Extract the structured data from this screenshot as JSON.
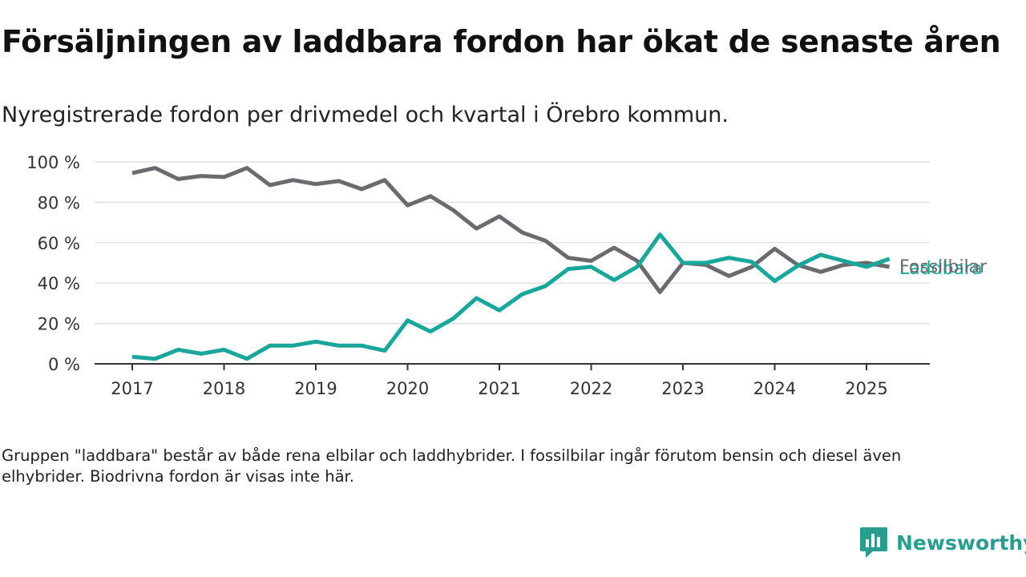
{
  "title": "Försäljningen av laddbara fordon har ökat de senaste åren",
  "subtitle": "Nyregistrerade fordon per drivmedel och kvartal i Örebro kommun.",
  "note": "Gruppen \"laddbara\" består av både rena elbilar och laddhybrider. I fossilbilar ingår förutom bensin och diesel även elhybrider. Biodrivna fordon är visas inte här.",
  "logo": {
    "text": "Newsworthy",
    "icon": "newsworthy-logo-icon",
    "color": "#2a9d8f"
  },
  "chart_data": {
    "type": "line",
    "title": "",
    "xlabel": "",
    "ylabel": "",
    "ylim": [
      0,
      100
    ],
    "y_ticks": [
      0,
      20,
      40,
      60,
      80,
      100
    ],
    "y_tick_labels": [
      "0 %",
      "20 %",
      "40 %",
      "60 %",
      "80 %",
      "100 %"
    ],
    "x_ticks": [
      2017,
      2018,
      2019,
      2020,
      2021,
      2022,
      2023,
      2024,
      2025
    ],
    "x_tick_labels": [
      "2017",
      "2018",
      "2019",
      "2020",
      "2021",
      "2022",
      "2023",
      "2024",
      "2025"
    ],
    "grid": true,
    "legend": "direct labels at line ends (right)",
    "x": [
      "2017 Q1",
      "2017 Q2",
      "2017 Q3",
      "2017 Q4",
      "2018 Q1",
      "2018 Q2",
      "2018 Q3",
      "2018 Q4",
      "2019 Q1",
      "2019 Q2",
      "2019 Q3",
      "2019 Q4",
      "2020 Q1",
      "2020 Q2",
      "2020 Q3",
      "2020 Q4",
      "2021 Q1",
      "2021 Q2",
      "2021 Q3",
      "2021 Q4",
      "2022 Q1",
      "2022 Q2",
      "2022 Q3",
      "2022 Q4",
      "2023 Q1",
      "2023 Q2",
      "2023 Q3",
      "2023 Q4",
      "2024 Q1",
      "2024 Q2",
      "2024 Q3",
      "2024 Q4",
      "2025 Q1",
      "2025 Q2"
    ],
    "series": [
      {
        "name": "Fossilbilar",
        "color": "#6b6b6f",
        "values": [
          94.5,
          97,
          91.5,
          93,
          92.5,
          97,
          88.5,
          91,
          89,
          90.5,
          86.5,
          91,
          78.5,
          83,
          76,
          67,
          73,
          65,
          61,
          52.5,
          51,
          57.5,
          51,
          35.5,
          50,
          49,
          43.5,
          48,
          57,
          49,
          45.5,
          49,
          50,
          48
        ]
      },
      {
        "name": "Laddbara",
        "color": "#1aa69a",
        "values": [
          3.5,
          2.5,
          7,
          5,
          7,
          2.5,
          9,
          9,
          11,
          9,
          9,
          6.5,
          21.5,
          16,
          22.5,
          32.5,
          26.5,
          34.5,
          38.5,
          47,
          48,
          41.5,
          48,
          64,
          50,
          50,
          52.5,
          50.5,
          41,
          48.5,
          54,
          51,
          48,
          52
        ]
      }
    ]
  }
}
